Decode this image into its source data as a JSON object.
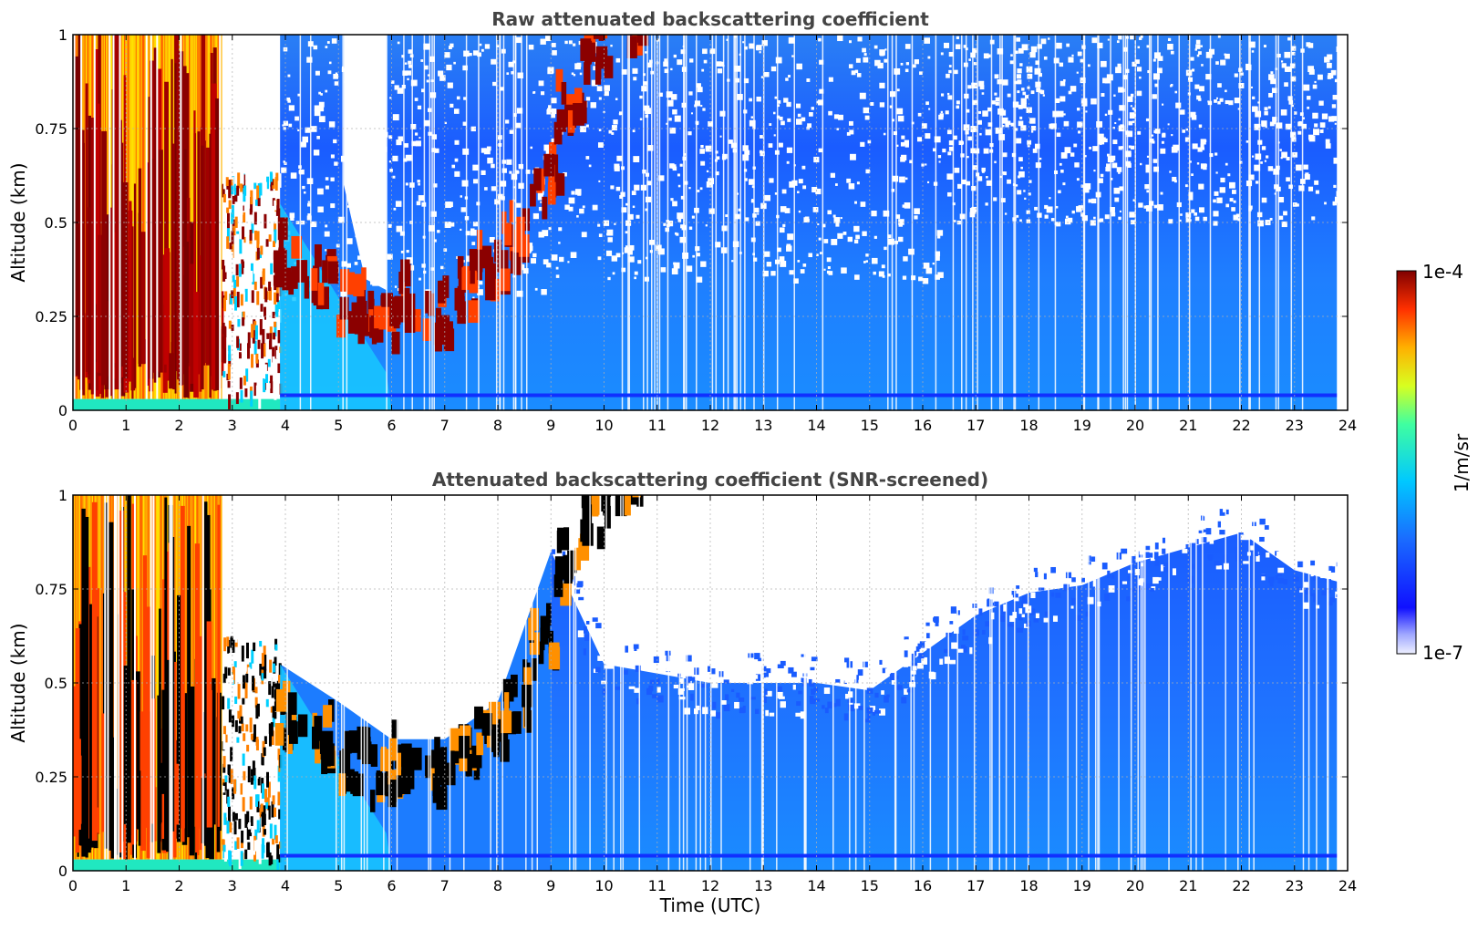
{
  "chart_data": [
    {
      "type": "heatmap",
      "title": "Raw attenuated backscattering coefficient",
      "xlabel": "",
      "ylabel": "Altitude (km)",
      "xlim": [
        0,
        24
      ],
      "ylim": [
        0,
        1
      ],
      "x_ticks": [
        "0",
        "1",
        "2",
        "3",
        "4",
        "5",
        "6",
        "7",
        "8",
        "9",
        "10",
        "11",
        "12",
        "13",
        "14",
        "15",
        "16",
        "17",
        "18",
        "19",
        "20",
        "21",
        "22",
        "23",
        "24"
      ],
      "y_ticks": [
        "0",
        "0.25",
        "0.5",
        "0.75",
        "1"
      ],
      "grid": "dotted",
      "screened": false,
      "regions": [
        {
          "x": [
            0,
            2.8
          ],
          "y": [
            0,
            1
          ],
          "level": "high",
          "note": "yellow/orange/red strong signal"
        },
        {
          "x": [
            2.8,
            3.9
          ],
          "y": [
            0,
            0.55
          ],
          "level": "high"
        },
        {
          "x": [
            3.9,
            6.0
          ],
          "y": [
            0.1,
            0.3
          ],
          "level": "very high"
        },
        {
          "x": [
            6.0,
            8.8
          ],
          "y": [
            0.13,
            0.9
          ],
          "level": "very high",
          "note": "rising aerosol layer"
        },
        {
          "x": [
            9.5,
            10.5
          ],
          "y": [
            0.85,
            1
          ],
          "level": "very high"
        },
        {
          "x": [
            3.9,
            24
          ],
          "y": [
            0,
            0.4
          ],
          "level": "low"
        },
        {
          "x": [
            16.3,
            24
          ],
          "y": [
            0,
            0.75
          ],
          "level": "low"
        }
      ],
      "near_surface_line_km": 0.04
    },
    {
      "type": "heatmap",
      "title": "Attenuated backscattering coefficient (SNR-screened)",
      "xlabel": "Time (UTC)",
      "ylabel": "Altitude (km)",
      "xlim": [
        0,
        24
      ],
      "ylim": [
        0,
        1
      ],
      "x_ticks": [
        "0",
        "1",
        "2",
        "3",
        "4",
        "5",
        "6",
        "7",
        "8",
        "9",
        "10",
        "11",
        "12",
        "13",
        "14",
        "15",
        "16",
        "17",
        "18",
        "19",
        "20",
        "21",
        "22",
        "23",
        "24"
      ],
      "y_ticks": [
        "0",
        "0.25",
        "0.5",
        "0.75",
        "1"
      ],
      "grid": "dotted",
      "screened": true,
      "layer_top_km": [
        {
          "t": 9.0,
          "top": 0.85
        },
        {
          "t": 10.0,
          "top": 0.55
        },
        {
          "t": 12.0,
          "top": 0.5
        },
        {
          "t": 14.0,
          "top": 0.5
        },
        {
          "t": 15.0,
          "top": 0.48
        },
        {
          "t": 16.0,
          "top": 0.58
        },
        {
          "t": 17.0,
          "top": 0.68
        },
        {
          "t": 18.0,
          "top": 0.74
        },
        {
          "t": 19.0,
          "top": 0.76
        },
        {
          "t": 20.0,
          "top": 0.82
        },
        {
          "t": 21.0,
          "top": 0.86
        },
        {
          "t": 22.0,
          "top": 0.9
        },
        {
          "t": 23.0,
          "top": 0.8
        },
        {
          "t": 23.8,
          "top": 0.77
        }
      ],
      "near_surface_line_km": 0.04
    }
  ],
  "colorbar": {
    "min_label": "1e-7",
    "max_label": "1e-4",
    "unit_label": "1/m/sr",
    "colormap": "jet"
  }
}
